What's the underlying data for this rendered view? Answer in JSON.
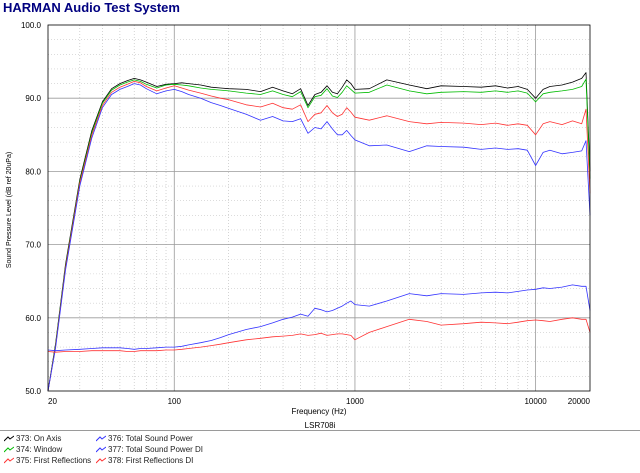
{
  "app": {
    "title": "HARMAN Audio Test System"
  },
  "chart_data": {
    "type": "line",
    "title": "",
    "xlabel": "Frequency (Hz)",
    "ylabel": "Sound Pressure Level (dB ref 20uPa)",
    "caption": "LSR708i",
    "x_scale": "log",
    "xlim": [
      20,
      20000
    ],
    "ylim": [
      50.0,
      100.0
    ],
    "x_ticks": [
      {
        "value": 20,
        "label": "20"
      },
      {
        "value": 100,
        "label": "100"
      },
      {
        "value": 1000,
        "label": "1000"
      },
      {
        "value": 10000,
        "label": "10000"
      },
      {
        "value": 20000,
        "label": "20000"
      }
    ],
    "y_ticks": [
      {
        "value": 50,
        "label": "50.0"
      },
      {
        "value": 60,
        "label": "60.0"
      },
      {
        "value": 70,
        "label": "70.0"
      },
      {
        "value": 80,
        "label": "80.0"
      },
      {
        "value": 90,
        "label": "90.0"
      },
      {
        "value": 100,
        "label": "100.0"
      }
    ],
    "grid": true,
    "series": [
      {
        "name": "373: On Axis",
        "color": "#000000",
        "axis": "left",
        "x": [
          20,
          22,
          25,
          30,
          35,
          40,
          45,
          50,
          55,
          60,
          65,
          70,
          80,
          90,
          100,
          110,
          120,
          140,
          160,
          180,
          200,
          250,
          300,
          350,
          400,
          450,
          500,
          550,
          600,
          650,
          700,
          750,
          800,
          850,
          900,
          950,
          1000,
          1200,
          1500,
          2000,
          2500,
          3000,
          4000,
          5000,
          6000,
          7000,
          8000,
          9000,
          10000,
          11000,
          12000,
          14000,
          16000,
          18000,
          19000,
          20000
        ],
        "y": [
          50.0,
          56.4,
          67.3,
          78.9,
          85.6,
          89.5,
          91.3,
          92.0,
          92.4,
          92.7,
          92.5,
          92.2,
          91.6,
          91.9,
          92.0,
          92.1,
          92.0,
          91.8,
          91.5,
          91.4,
          91.3,
          91.2,
          90.9,
          91.5,
          91.0,
          90.6,
          91.3,
          89.0,
          90.5,
          90.8,
          91.7,
          90.8,
          90.6,
          91.5,
          92.5,
          92.0,
          91.2,
          91.3,
          92.5,
          91.8,
          91.3,
          91.7,
          91.6,
          91.5,
          91.7,
          91.4,
          91.6,
          91.2,
          90.0,
          91.2,
          91.6,
          91.8,
          92.2,
          92.7,
          93.5,
          80.0
        ]
      },
      {
        "name": "374: Window",
        "color": "#00bb00",
        "axis": "left",
        "x": [
          20,
          22,
          25,
          30,
          35,
          40,
          45,
          50,
          55,
          60,
          65,
          70,
          80,
          90,
          100,
          110,
          120,
          140,
          160,
          180,
          200,
          250,
          300,
          350,
          400,
          450,
          500,
          550,
          600,
          650,
          700,
          750,
          800,
          850,
          900,
          950,
          1000,
          1200,
          1500,
          2000,
          2500,
          3000,
          4000,
          5000,
          6000,
          7000,
          8000,
          9000,
          10000,
          11000,
          12000,
          14000,
          16000,
          18000,
          19000,
          20000
        ],
        "y": [
          50.0,
          56.2,
          67.0,
          78.6,
          85.3,
          89.3,
          91.1,
          91.8,
          92.2,
          92.5,
          92.3,
          91.9,
          91.4,
          91.8,
          91.9,
          91.8,
          91.7,
          91.4,
          91.2,
          91.1,
          91.0,
          90.7,
          90.5,
          91.0,
          90.5,
          90.2,
          90.9,
          88.7,
          90.2,
          90.4,
          91.3,
          90.3,
          90.1,
          90.8,
          91.7,
          91.2,
          90.7,
          90.8,
          91.8,
          91.0,
          90.6,
          90.8,
          90.9,
          90.8,
          91.0,
          90.8,
          91.0,
          90.7,
          89.5,
          90.6,
          90.8,
          91.0,
          91.2,
          91.6,
          92.6,
          79.0
        ]
      },
      {
        "name": "375: First Reflections",
        "color": "#ff3333",
        "axis": "left",
        "x": [
          20,
          22,
          25,
          30,
          35,
          40,
          45,
          50,
          55,
          60,
          65,
          70,
          80,
          90,
          100,
          110,
          120,
          140,
          160,
          180,
          200,
          250,
          300,
          350,
          400,
          450,
          500,
          550,
          600,
          650,
          700,
          750,
          800,
          850,
          900,
          950,
          1000,
          1200,
          1500,
          2000,
          2500,
          3000,
          4000,
          5000,
          6000,
          7000,
          8000,
          9000,
          10000,
          11000,
          12000,
          14000,
          16000,
          18000,
          19000,
          20000
        ],
        "y": [
          50.0,
          56.0,
          66.8,
          78.4,
          85.0,
          89.0,
          90.8,
          91.5,
          91.9,
          92.3,
          92.1,
          91.6,
          91.0,
          91.4,
          91.7,
          91.4,
          91.1,
          90.7,
          90.3,
          90.0,
          89.8,
          89.1,
          88.8,
          89.3,
          88.7,
          88.5,
          89.1,
          86.8,
          87.8,
          88.0,
          89.0,
          88.0,
          87.5,
          87.8,
          88.7,
          88.1,
          87.4,
          87.0,
          87.6,
          86.8,
          86.5,
          86.7,
          86.6,
          86.4,
          86.6,
          86.3,
          86.5,
          86.3,
          85.0,
          86.5,
          86.8,
          86.4,
          86.9,
          86.5,
          88.5,
          77.0
        ]
      },
      {
        "name": "376: Total Sound Power",
        "color": "#3333ff",
        "axis": "left",
        "x": [
          20,
          22,
          25,
          30,
          35,
          40,
          45,
          50,
          55,
          60,
          65,
          70,
          80,
          90,
          100,
          110,
          120,
          140,
          160,
          180,
          200,
          250,
          300,
          350,
          400,
          450,
          500,
          550,
          600,
          650,
          700,
          750,
          800,
          850,
          900,
          950,
          1000,
          1200,
          1500,
          2000,
          2500,
          3000,
          4000,
          5000,
          6000,
          7000,
          8000,
          9000,
          10000,
          11000,
          12000,
          14000,
          16000,
          18000,
          19000,
          20000
        ],
        "y": [
          50.0,
          55.8,
          66.5,
          78.0,
          84.6,
          88.7,
          90.5,
          91.2,
          91.6,
          92.0,
          91.8,
          91.3,
          90.6,
          91.0,
          91.2,
          90.9,
          90.5,
          90.0,
          89.4,
          89.0,
          88.6,
          87.8,
          87.0,
          87.5,
          86.9,
          86.8,
          87.2,
          85.2,
          86.0,
          85.8,
          86.8,
          85.8,
          85.0,
          85.0,
          85.6,
          84.9,
          84.3,
          83.5,
          83.6,
          82.7,
          83.5,
          83.4,
          83.3,
          83.0,
          83.2,
          83.0,
          83.1,
          82.9,
          80.8,
          82.6,
          82.9,
          82.4,
          82.6,
          82.8,
          84.2,
          74.0
        ]
      },
      {
        "name": "377: Total Sound Power DI",
        "color": "#3333ff",
        "axis": "right",
        "x": [
          20,
          22,
          25,
          30,
          35,
          40,
          45,
          50,
          55,
          60,
          65,
          70,
          80,
          90,
          100,
          110,
          120,
          140,
          160,
          180,
          200,
          250,
          300,
          350,
          400,
          450,
          500,
          550,
          600,
          650,
          700,
          750,
          800,
          850,
          900,
          950,
          1000,
          1200,
          1500,
          2000,
          2500,
          3000,
          4000,
          5000,
          6000,
          7000,
          8000,
          9000,
          10000,
          11000,
          12000,
          14000,
          16000,
          18000,
          19000,
          20000
        ],
        "y": [
          55.6,
          55.5,
          55.6,
          55.7,
          55.8,
          55.9,
          55.9,
          55.9,
          55.8,
          55.7,
          55.8,
          55.8,
          55.9,
          56.0,
          56.0,
          56.1,
          56.3,
          56.6,
          56.9,
          57.3,
          57.7,
          58.4,
          58.8,
          59.3,
          59.8,
          60.1,
          60.5,
          60.2,
          61.3,
          61.1,
          60.8,
          61.0,
          61.3,
          61.6,
          62.0,
          62.3,
          61.8,
          61.6,
          62.3,
          63.3,
          63.0,
          63.3,
          63.2,
          63.4,
          63.5,
          63.4,
          63.6,
          63.8,
          63.9,
          64.1,
          64.0,
          64.2,
          64.5,
          64.3,
          64.3,
          61.0
        ]
      },
      {
        "name": "378: First Reflections DI",
        "color": "#ff3333",
        "axis": "right",
        "x": [
          20,
          22,
          25,
          30,
          35,
          40,
          45,
          50,
          55,
          60,
          65,
          70,
          80,
          90,
          100,
          110,
          120,
          140,
          160,
          180,
          200,
          250,
          300,
          350,
          400,
          450,
          500,
          550,
          600,
          650,
          700,
          750,
          800,
          850,
          900,
          950,
          1000,
          1200,
          1500,
          2000,
          2500,
          3000,
          4000,
          5000,
          6000,
          7000,
          8000,
          9000,
          10000,
          11000,
          12000,
          14000,
          16000,
          18000,
          19000,
          20000
        ],
        "y": [
          55.4,
          55.3,
          55.4,
          55.4,
          55.5,
          55.5,
          55.5,
          55.5,
          55.4,
          55.4,
          55.5,
          55.5,
          55.5,
          55.6,
          55.6,
          55.7,
          55.8,
          56.0,
          56.2,
          56.4,
          56.6,
          57.0,
          57.2,
          57.4,
          57.5,
          57.6,
          57.8,
          57.6,
          57.7,
          57.9,
          57.6,
          57.7,
          57.8,
          57.8,
          57.7,
          57.6,
          57.0,
          58.0,
          58.8,
          59.8,
          59.5,
          59.0,
          59.2,
          59.4,
          59.3,
          59.2,
          59.4,
          59.6,
          59.7,
          59.6,
          59.5,
          59.8,
          60.0,
          59.8,
          59.8,
          58.0
        ]
      }
    ]
  }
}
